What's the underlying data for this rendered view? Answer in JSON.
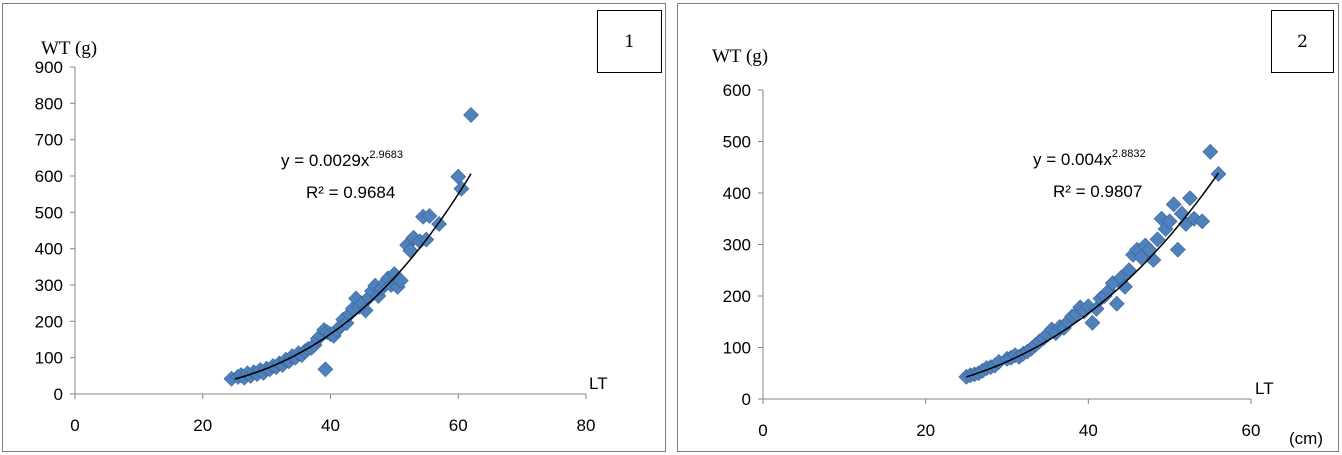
{
  "colors": {
    "marker": "#4F81BD",
    "marker_edge": "#3A6396",
    "trend": "#000000",
    "axis": "#868686"
  },
  "panels": [
    {
      "number": "1",
      "ylabel_main": "WT",
      "ylabel_unit": "(g)",
      "xlabel": "LT",
      "xunit": ""
    },
    {
      "number": "2",
      "ylabel_main": "WT",
      "ylabel_unit": "(g)",
      "xlabel": "LT",
      "xunit": "(cm)"
    }
  ],
  "chart_data": [
    {
      "type": "scatter",
      "title": "",
      "xlabel": "LT",
      "ylabel": "WT (g)",
      "xlim": [
        0,
        80
      ],
      "ylim": [
        0,
        900
      ],
      "xticks": [
        "0",
        "20",
        "40",
        "60",
        "80"
      ],
      "yticks": [
        "0",
        "100",
        "200",
        "300",
        "400",
        "500",
        "600",
        "700",
        "800",
        "900"
      ],
      "grid": false,
      "legend": "none",
      "trendline": {
        "type": "power",
        "a": 0.0029,
        "b": 2.9683,
        "x_range": [
          25,
          62
        ],
        "equation_text": "y = 0.0029x",
        "equation_exp": "2.9683",
        "r2_text": "R² = 0.9684"
      },
      "points": [
        [
          24.5,
          42
        ],
        [
          25.5,
          47
        ],
        [
          26,
          52
        ],
        [
          26.5,
          45
        ],
        [
          27,
          57
        ],
        [
          27.5,
          50
        ],
        [
          28,
          60
        ],
        [
          28.5,
          55
        ],
        [
          29,
          66
        ],
        [
          29.5,
          58
        ],
        [
          30,
          70
        ],
        [
          30.5,
          68
        ],
        [
          31,
          77
        ],
        [
          31.5,
          74
        ],
        [
          32,
          84
        ],
        [
          32.5,
          80
        ],
        [
          33,
          94
        ],
        [
          33.5,
          90
        ],
        [
          34,
          104
        ],
        [
          34.5,
          100
        ],
        [
          35,
          112
        ],
        [
          35.5,
          107
        ],
        [
          36,
          118
        ],
        [
          36.5,
          124
        ],
        [
          37,
          127
        ],
        [
          37.5,
          135
        ],
        [
          38,
          152
        ],
        [
          38.5,
          160
        ],
        [
          39,
          176
        ],
        [
          39.2,
          68
        ],
        [
          39.5,
          170
        ],
        [
          40,
          165
        ],
        [
          40.5,
          160
        ],
        [
          41,
          175
        ],
        [
          41.5,
          185
        ],
        [
          42,
          205
        ],
        [
          42.5,
          195
        ],
        [
          43,
          220
        ],
        [
          43.5,
          235
        ],
        [
          44,
          263
        ],
        [
          44.5,
          240
        ],
        [
          45,
          250
        ],
        [
          45.5,
          230
        ],
        [
          46,
          265
        ],
        [
          46.5,
          283
        ],
        [
          47,
          298
        ],
        [
          47.5,
          270
        ],
        [
          48,
          290
        ],
        [
          48.5,
          305
        ],
        [
          49,
          318
        ],
        [
          49.5,
          300
        ],
        [
          50,
          330
        ],
        [
          50.5,
          295
        ],
        [
          51,
          312
        ],
        [
          52,
          410
        ],
        [
          52.5,
          395
        ],
        [
          53,
          430
        ],
        [
          54,
          420
        ],
        [
          54.5,
          488
        ],
        [
          55,
          425
        ],
        [
          55.5,
          490
        ],
        [
          57,
          468
        ],
        [
          60,
          598
        ],
        [
          60.5,
          565
        ],
        [
          62,
          768
        ]
      ]
    },
    {
      "type": "scatter",
      "title": "",
      "xlabel": "LT",
      "ylabel": "WT (g)",
      "xlim": [
        0,
        60
      ],
      "ylim": [
        0,
        600
      ],
      "xticks": [
        "0",
        "20",
        "40",
        "60"
      ],
      "yticks": [
        "0",
        "100",
        "200",
        "300",
        "400",
        "500",
        "600"
      ],
      "grid": false,
      "legend": "none",
      "trendline": {
        "type": "power",
        "a": 0.004,
        "b": 2.8832,
        "x_range": [
          25,
          56
        ],
        "equation_text": "y = 0.004x",
        "equation_exp": "2.8832",
        "r2_text": "R² = 0.9807"
      },
      "points": [
        [
          25,
          43
        ],
        [
          25.5,
          46
        ],
        [
          26,
          48
        ],
        [
          26.5,
          50
        ],
        [
          27,
          55
        ],
        [
          27.5,
          60
        ],
        [
          28,
          62
        ],
        [
          28.5,
          65
        ],
        [
          29,
          72
        ],
        [
          30,
          78
        ],
        [
          30.5,
          80
        ],
        [
          31,
          85
        ],
        [
          31.5,
          82
        ],
        [
          32,
          88
        ],
        [
          32.5,
          92
        ],
        [
          33,
          98
        ],
        [
          33.5,
          105
        ],
        [
          34,
          112
        ],
        [
          34.5,
          118
        ],
        [
          35,
          125
        ],
        [
          35.5,
          135
        ],
        [
          36,
          128
        ],
        [
          36.5,
          140
        ],
        [
          37,
          138
        ],
        [
          37.5,
          150
        ],
        [
          38,
          160
        ],
        [
          38.5,
          165
        ],
        [
          39,
          178
        ],
        [
          39.5,
          170
        ],
        [
          40,
          180
        ],
        [
          40.5,
          148
        ],
        [
          41,
          175
        ],
        [
          41.5,
          195
        ],
        [
          42,
          200
        ],
        [
          42.5,
          210
        ],
        [
          43,
          225
        ],
        [
          43.5,
          185
        ],
        [
          44,
          235
        ],
        [
          44.5,
          218
        ],
        [
          45,
          250
        ],
        [
          45.5,
          280
        ],
        [
          46,
          290
        ],
        [
          46.5,
          275
        ],
        [
          47,
          298
        ],
        [
          47.5,
          290
        ],
        [
          48,
          270
        ],
        [
          48.5,
          310
        ],
        [
          49,
          350
        ],
        [
          49.5,
          330
        ],
        [
          50,
          345
        ],
        [
          50.5,
          378
        ],
        [
          51,
          290
        ],
        [
          51.5,
          360
        ],
        [
          52,
          340
        ],
        [
          52.5,
          390
        ],
        [
          53,
          350
        ],
        [
          54,
          345
        ],
        [
          55,
          480
        ],
        [
          56,
          437
        ]
      ]
    }
  ]
}
